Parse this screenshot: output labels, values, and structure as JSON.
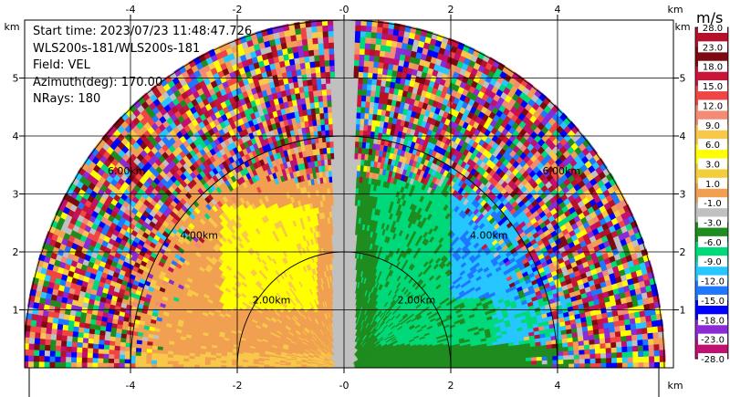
{
  "info": {
    "start_time": "Start time: 2023/07/23 11:48:47.726",
    "instrument": "WLS200s-181/WLS200s-181",
    "field": "Field: VEL",
    "azimuth": "Azimuth(deg): 170.00",
    "nrays": "NRays: 180"
  },
  "colorbar": {
    "unit": "m/s",
    "ticks": [
      "28.0",
      "23.0",
      "18.0",
      "15.0",
      "12.0",
      "9.0",
      "6.0",
      "3.0",
      "1.0",
      "-1.0",
      "-3.0",
      "-6.0",
      "-9.0",
      "-12.0",
      "-15.0",
      "-18.0",
      "-23.0",
      "-28.0"
    ],
    "colors": [
      "#b5122a",
      "#7c0a10",
      "#c8153a",
      "#f04545",
      "#f28a74",
      "#f7c84a",
      "#ffff00",
      "#f2ce3b",
      "#f0a050",
      "#c0c0c0",
      "#1f8c1f",
      "#00d97a",
      "#26c6ff",
      "#1e78ff",
      "#0000ff",
      "#8a2bd6",
      "#c01070"
    ]
  },
  "chart_data": {
    "type": "heatmap",
    "title": "",
    "field": "VEL",
    "unit": "m/s",
    "scan": "RHI",
    "azimuth_deg": 170.0,
    "n_rays": 180,
    "x_axis": {
      "label": "km",
      "ticks": [
        "-4",
        "-2",
        "-0",
        "2",
        "4"
      ],
      "range": [
        -6.1,
        6.1
      ]
    },
    "y_axis": {
      "label": "km",
      "ticks": [
        "1",
        "2",
        "3",
        "4",
        "5"
      ],
      "range": [
        0,
        6.0
      ]
    },
    "range_rings": [
      {
        "radius_km": 2,
        "label": "2.00km"
      },
      {
        "radius_km": 4,
        "label": "4.00km"
      },
      {
        "radius_km": 6,
        "label": "6.00km"
      }
    ],
    "colorbar_bounds": [
      28.0,
      23.0,
      18.0,
      15.0,
      12.0,
      9.0,
      6.0,
      3.0,
      1.0,
      -1.0,
      -3.0,
      -6.0,
      -9.0,
      -12.0,
      -15.0,
      -18.0,
      -23.0,
      -28.0
    ]
  }
}
